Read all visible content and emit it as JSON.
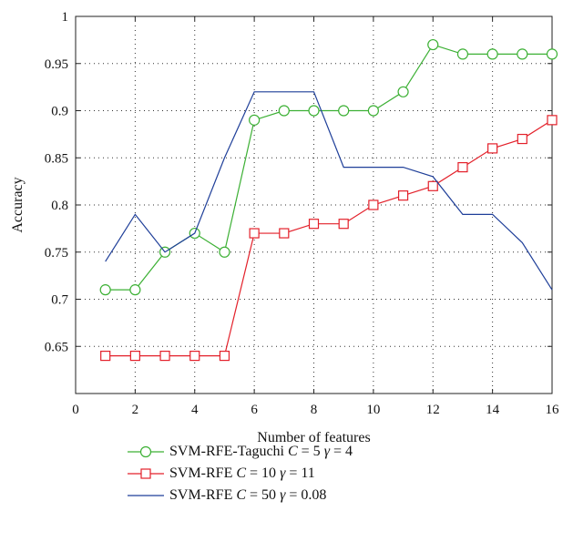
{
  "chart_data": {
    "type": "line",
    "xlabel": "Number of features",
    "ylabel": "Accuracy",
    "xlim": [
      0,
      16
    ],
    "ylim": [
      0.6,
      1.0
    ],
    "xticks": [
      0,
      2,
      4,
      6,
      8,
      10,
      12,
      14,
      16
    ],
    "yticks": [
      0.65,
      0.7,
      0.75,
      0.8,
      0.85,
      0.9,
      0.95,
      1
    ],
    "ytick_labels": [
      "0.65",
      "0.7",
      "0.75",
      "0.8",
      "0.85",
      "0.9",
      "0.95",
      "1"
    ],
    "grid": true,
    "legend_position": "below",
    "series": [
      {
        "name": "SVM-RFE-Taguchi C = 5 γ = 4",
        "name_parts": [
          "SVM-RFE-Taguchi ",
          "C",
          " = 5 ",
          "γ",
          " = 4"
        ],
        "color": "#3cb034",
        "marker": "circle",
        "x": [
          1,
          2,
          3,
          4,
          5,
          6,
          7,
          8,
          9,
          10,
          11,
          12,
          13,
          14,
          15,
          16
        ],
        "values": [
          0.71,
          0.71,
          0.75,
          0.77,
          0.75,
          0.89,
          0.9,
          0.9,
          0.9,
          0.9,
          0.92,
          0.97,
          0.96,
          0.96,
          0.96,
          0.96
        ]
      },
      {
        "name": "SVM-RFE C = 10 γ = 11",
        "name_parts": [
          "SVM-RFE ",
          "C",
          " = 10 ",
          "γ",
          " = 11"
        ],
        "color": "#e3202a",
        "marker": "square",
        "x": [
          1,
          2,
          3,
          4,
          5,
          6,
          7,
          8,
          9,
          10,
          11,
          12,
          13,
          14,
          15,
          16
        ],
        "values": [
          0.64,
          0.64,
          0.64,
          0.64,
          0.64,
          0.77,
          0.77,
          0.78,
          0.78,
          0.8,
          0.81,
          0.82,
          0.84,
          0.86,
          0.87,
          0.89
        ]
      },
      {
        "name": "SVM-RFE C = 50 γ = 0.08",
        "name_parts": [
          "SVM-RFE ",
          "C",
          " = 50 ",
          "γ",
          " = 0.08"
        ],
        "color": "#1f3f99",
        "marker": "none",
        "x": [
          1,
          2,
          3,
          4,
          5,
          6,
          7,
          8,
          9,
          10,
          11,
          12,
          13,
          14,
          15,
          16
        ],
        "values": [
          0.74,
          0.79,
          0.75,
          0.77,
          0.85,
          0.92,
          0.92,
          0.92,
          0.84,
          0.84,
          0.84,
          0.83,
          0.79,
          0.79,
          0.76,
          0.71
        ]
      }
    ]
  }
}
